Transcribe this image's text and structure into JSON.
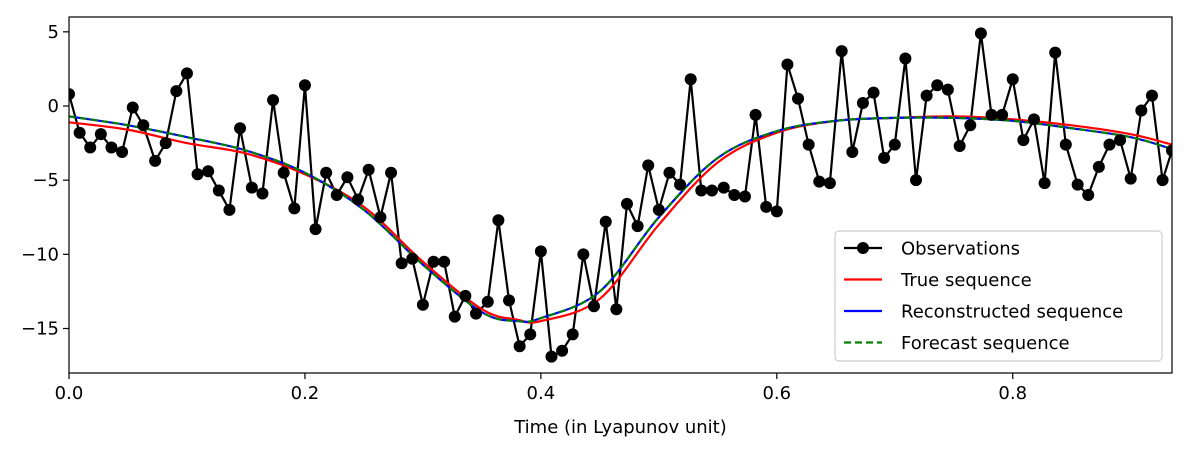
{
  "chart_data": {
    "type": "line",
    "title": "",
    "xlabel": "Time (in Lyapunov unit)",
    "ylabel": "",
    "xlim": [
      0.0,
      0.935
    ],
    "ylim": [
      -18.0,
      6.0
    ],
    "x_ticks": [
      0.0,
      0.2,
      0.4,
      0.6,
      0.8
    ],
    "x_tick_labels": [
      "0.0",
      "0.2",
      "0.4",
      "0.6",
      "0.8"
    ],
    "y_ticks": [
      5,
      0,
      -5,
      -10,
      -15
    ],
    "y_tick_labels": [
      "5",
      "0",
      "−5",
      "−10",
      "−15"
    ],
    "grid": false,
    "legend_position": "lower right",
    "colors": {
      "observations": "#000000",
      "true": "#ff0000",
      "reconstructed": "#0000ff",
      "forecast": "#008000"
    },
    "series": [
      {
        "name": "Observations",
        "style": "line-with-markers",
        "points": [
          [
            0.0,
            0.8
          ],
          [
            0.009,
            -1.8
          ],
          [
            0.018,
            -2.8
          ],
          [
            0.027,
            -1.9
          ],
          [
            0.036,
            -2.8
          ],
          [
            0.045,
            -3.1
          ],
          [
            0.054,
            -0.1
          ],
          [
            0.063,
            -1.3
          ],
          [
            0.073,
            -3.7
          ],
          [
            0.082,
            -2.5
          ],
          [
            0.091,
            1.0
          ],
          [
            0.1,
            2.2
          ],
          [
            0.109,
            -4.6
          ],
          [
            0.118,
            -4.4
          ],
          [
            0.127,
            -5.7
          ],
          [
            0.136,
            -7.0
          ],
          [
            0.145,
            -1.5
          ],
          [
            0.155,
            -5.5
          ],
          [
            0.164,
            -5.9
          ],
          [
            0.173,
            0.4
          ],
          [
            0.182,
            -4.5
          ],
          [
            0.191,
            -6.9
          ],
          [
            0.2,
            1.4
          ],
          [
            0.209,
            -8.3
          ],
          [
            0.218,
            -4.5
          ],
          [
            0.227,
            -6.0
          ],
          [
            0.236,
            -4.8
          ],
          [
            0.245,
            -6.3
          ],
          [
            0.254,
            -4.3
          ],
          [
            0.264,
            -7.5
          ],
          [
            0.273,
            -4.5
          ],
          [
            0.282,
            -10.6
          ],
          [
            0.291,
            -10.3
          ],
          [
            0.3,
            -13.4
          ],
          [
            0.309,
            -10.5
          ],
          [
            0.318,
            -10.5
          ],
          [
            0.327,
            -14.2
          ],
          [
            0.336,
            -12.8
          ],
          [
            0.345,
            -14.0
          ],
          [
            0.355,
            -13.2
          ],
          [
            0.364,
            -7.7
          ],
          [
            0.373,
            -13.1
          ],
          [
            0.382,
            -16.2
          ],
          [
            0.391,
            -15.4
          ],
          [
            0.4,
            -9.8
          ],
          [
            0.409,
            -16.9
          ],
          [
            0.418,
            -16.5
          ],
          [
            0.427,
            -15.4
          ],
          [
            0.436,
            -10.0
          ],
          [
            0.445,
            -13.5
          ],
          [
            0.455,
            -7.8
          ],
          [
            0.464,
            -13.7
          ],
          [
            0.473,
            -6.6
          ],
          [
            0.482,
            -8.1
          ],
          [
            0.491,
            -4.0
          ],
          [
            0.5,
            -7.0
          ],
          [
            0.509,
            -4.5
          ],
          [
            0.518,
            -5.3
          ],
          [
            0.527,
            1.8
          ],
          [
            0.536,
            -5.7
          ],
          [
            0.545,
            -5.7
          ],
          [
            0.555,
            -5.5
          ],
          [
            0.564,
            -6.0
          ],
          [
            0.573,
            -6.1
          ],
          [
            0.582,
            -0.6
          ],
          [
            0.591,
            -6.8
          ],
          [
            0.6,
            -7.1
          ],
          [
            0.609,
            2.8
          ],
          [
            0.618,
            0.5
          ],
          [
            0.627,
            -2.6
          ],
          [
            0.636,
            -5.1
          ],
          [
            0.645,
            -5.2
          ],
          [
            0.655,
            3.7
          ],
          [
            0.664,
            -3.1
          ],
          [
            0.673,
            0.2
          ],
          [
            0.682,
            0.9
          ],
          [
            0.691,
            -3.5
          ],
          [
            0.7,
            -2.6
          ],
          [
            0.709,
            3.2
          ],
          [
            0.718,
            -5.0
          ],
          [
            0.727,
            0.7
          ],
          [
            0.736,
            1.4
          ],
          [
            0.745,
            1.1
          ],
          [
            0.755,
            -2.7
          ],
          [
            0.764,
            -1.3
          ],
          [
            0.773,
            4.9
          ],
          [
            0.782,
            -0.6
          ],
          [
            0.791,
            -0.6
          ],
          [
            0.8,
            1.8
          ],
          [
            0.809,
            -2.3
          ],
          [
            0.818,
            -0.9
          ],
          [
            0.827,
            -5.2
          ],
          [
            0.836,
            3.6
          ],
          [
            0.845,
            -2.6
          ],
          [
            0.855,
            -5.3
          ],
          [
            0.864,
            -6.0
          ],
          [
            0.873,
            -4.1
          ],
          [
            0.882,
            -2.6
          ],
          [
            0.891,
            -2.3
          ],
          [
            0.9,
            -4.9
          ],
          [
            0.909,
            -0.3
          ],
          [
            0.918,
            0.7
          ],
          [
            0.927,
            -5.0
          ],
          [
            0.935,
            -3.0
          ]
        ]
      },
      {
        "name": "True sequence",
        "style": "solid",
        "points": [
          [
            0.0,
            -1.1
          ],
          [
            0.05,
            -1.6
          ],
          [
            0.1,
            -2.5
          ],
          [
            0.15,
            -3.2
          ],
          [
            0.2,
            -4.6
          ],
          [
            0.25,
            -6.8
          ],
          [
            0.3,
            -10.5
          ],
          [
            0.35,
            -13.7
          ],
          [
            0.38,
            -14.4
          ],
          [
            0.4,
            -14.5
          ],
          [
            0.45,
            -13.0
          ],
          [
            0.5,
            -8.0
          ],
          [
            0.55,
            -3.8
          ],
          [
            0.6,
            -1.8
          ],
          [
            0.65,
            -1.0
          ],
          [
            0.7,
            -0.8
          ],
          [
            0.75,
            -0.7
          ],
          [
            0.8,
            -0.9
          ],
          [
            0.85,
            -1.3
          ],
          [
            0.9,
            -1.9
          ],
          [
            0.935,
            -2.6
          ]
        ]
      },
      {
        "name": "Reconstructed sequence",
        "style": "solid",
        "points": [
          [
            0.0,
            -0.7
          ],
          [
            0.05,
            -1.3
          ],
          [
            0.1,
            -2.1
          ],
          [
            0.15,
            -3.0
          ],
          [
            0.2,
            -4.5
          ],
          [
            0.25,
            -7.0
          ],
          [
            0.3,
            -10.7
          ],
          [
            0.35,
            -13.9
          ],
          [
            0.38,
            -14.5
          ],
          [
            0.4,
            -14.3
          ],
          [
            0.45,
            -12.5
          ],
          [
            0.5,
            -7.5
          ],
          [
            0.55,
            -3.5
          ],
          [
            0.6,
            -1.7
          ],
          [
            0.65,
            -1.0
          ],
          [
            0.7,
            -0.8
          ],
          [
            0.75,
            -0.8
          ],
          [
            0.8,
            -1.0
          ],
          [
            0.85,
            -1.5
          ],
          [
            0.9,
            -2.1
          ],
          [
            0.935,
            -2.9
          ]
        ]
      },
      {
        "name": "Forecast sequence",
        "style": "dashed",
        "points": [
          [
            0.0,
            -0.7
          ],
          [
            0.05,
            -1.3
          ],
          [
            0.1,
            -2.1
          ],
          [
            0.15,
            -3.0
          ],
          [
            0.2,
            -4.5
          ],
          [
            0.25,
            -7.0
          ],
          [
            0.3,
            -10.7
          ],
          [
            0.35,
            -13.9
          ],
          [
            0.38,
            -14.5
          ],
          [
            0.4,
            -14.3
          ],
          [
            0.45,
            -12.5
          ],
          [
            0.5,
            -7.5
          ],
          [
            0.55,
            -3.5
          ],
          [
            0.6,
            -1.7
          ],
          [
            0.65,
            -1.0
          ],
          [
            0.7,
            -0.8
          ],
          [
            0.75,
            -0.8
          ],
          [
            0.8,
            -1.0
          ],
          [
            0.85,
            -1.5
          ],
          [
            0.9,
            -2.1
          ],
          [
            0.935,
            -2.9
          ]
        ]
      }
    ]
  }
}
